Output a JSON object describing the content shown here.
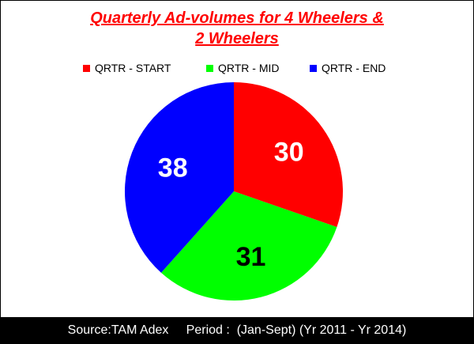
{
  "chart_data": {
    "type": "pie",
    "title": "Quarterly Ad-volumes for 4 Wheelers & 2 Wheelers",
    "title_lines": [
      "Quarterly Ad-volumes for 4 Wheelers &",
      "2 Wheelers"
    ],
    "categories": [
      "QRTR - START",
      "QRTR - MID",
      "QRTR - END"
    ],
    "values": [
      30,
      31,
      38
    ],
    "colors": [
      "#ff0000",
      "#00ff00",
      "#0000ff"
    ],
    "label_colors": [
      "#ffffff",
      "#000000",
      "#ffffff"
    ],
    "legend_position": "top"
  },
  "footer": {
    "source": "Source:TAM Adex",
    "period": "Period :  (Jan-Sept) (Yr 2011 - Yr 2014)"
  }
}
